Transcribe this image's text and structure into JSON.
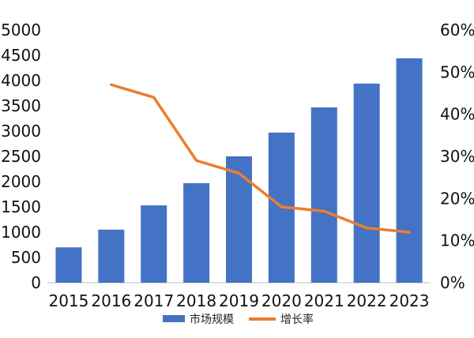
{
  "chart_data": {
    "type": "bar+line",
    "categories": [
      "2015",
      "2016",
      "2017",
      "2018",
      "2019",
      "2020",
      "2021",
      "2022",
      "2023"
    ],
    "series": [
      {
        "name": "市场规模",
        "type": "bar",
        "axis": "left",
        "color": "#4472C4",
        "values": [
          700,
          1050,
          1530,
          1970,
          2500,
          2970,
          3470,
          3940,
          4440
        ]
      },
      {
        "name": "增长率",
        "type": "line",
        "axis": "right",
        "color": "#ED7D31",
        "values": [
          null,
          0.47,
          0.44,
          0.29,
          0.26,
          0.18,
          0.17,
          0.13,
          0.12
        ]
      }
    ],
    "y_left": {
      "min": 0,
      "max": 5000,
      "ticks": [
        "0",
        "500",
        "1000",
        "1500",
        "2000",
        "2500",
        "3000",
        "3500",
        "4000",
        "4500",
        "5000"
      ]
    },
    "y_right": {
      "min": 0,
      "max": 0.6,
      "ticks": [
        "0%",
        "10%",
        "20%",
        "30%",
        "40%",
        "50%",
        "60%"
      ]
    },
    "title": "",
    "xlabel": "",
    "ylabel": "",
    "grid": false,
    "legend_position": "bottom"
  }
}
